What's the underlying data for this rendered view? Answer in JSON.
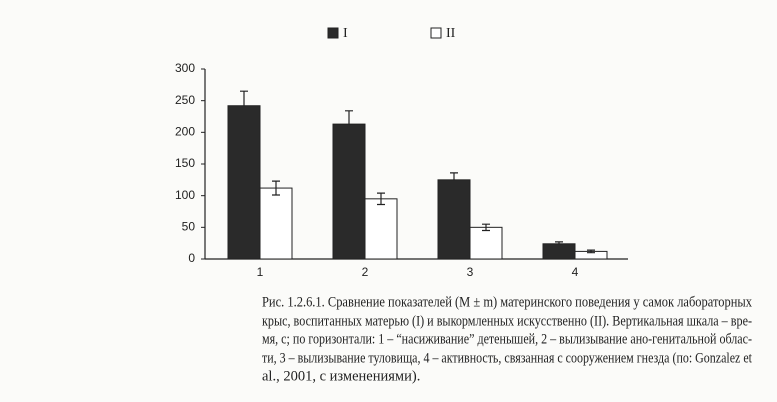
{
  "chart_data": {
    "type": "bar",
    "categories": [
      "1",
      "2",
      "3",
      "4"
    ],
    "series": [
      {
        "name": "I",
        "color": "#2a2a2a",
        "values": [
          242,
          213,
          125,
          24
        ],
        "errors": [
          23,
          21,
          11,
          3
        ]
      },
      {
        "name": "II",
        "color": "#ffffff",
        "values": [
          112,
          95,
          50,
          12
        ],
        "errors": [
          11,
          9,
          5,
          2
        ]
      }
    ],
    "ylim": [
      0,
      300
    ],
    "yticks": [
      0,
      50,
      100,
      150,
      200,
      250,
      300
    ]
  },
  "caption": [
    "Рис. 1.2.6.1. Сравнение показателей (M ± m) материнского поведения у самок лабораторных",
    "крыс, воспитанных матерью (I) и выкормленных искусственно (II). Вертикальная шкала – вре-",
    "мя, с; по горизонтали: 1 – “насиживание” детенышей, 2 – вылизывание ано-генитальной облас-",
    "ти, 3 – вылизывание туловища, 4 – активность, связанная с сооружением гнезда (по: Gonzalez et",
    "al., 2001, с изменениями)."
  ]
}
